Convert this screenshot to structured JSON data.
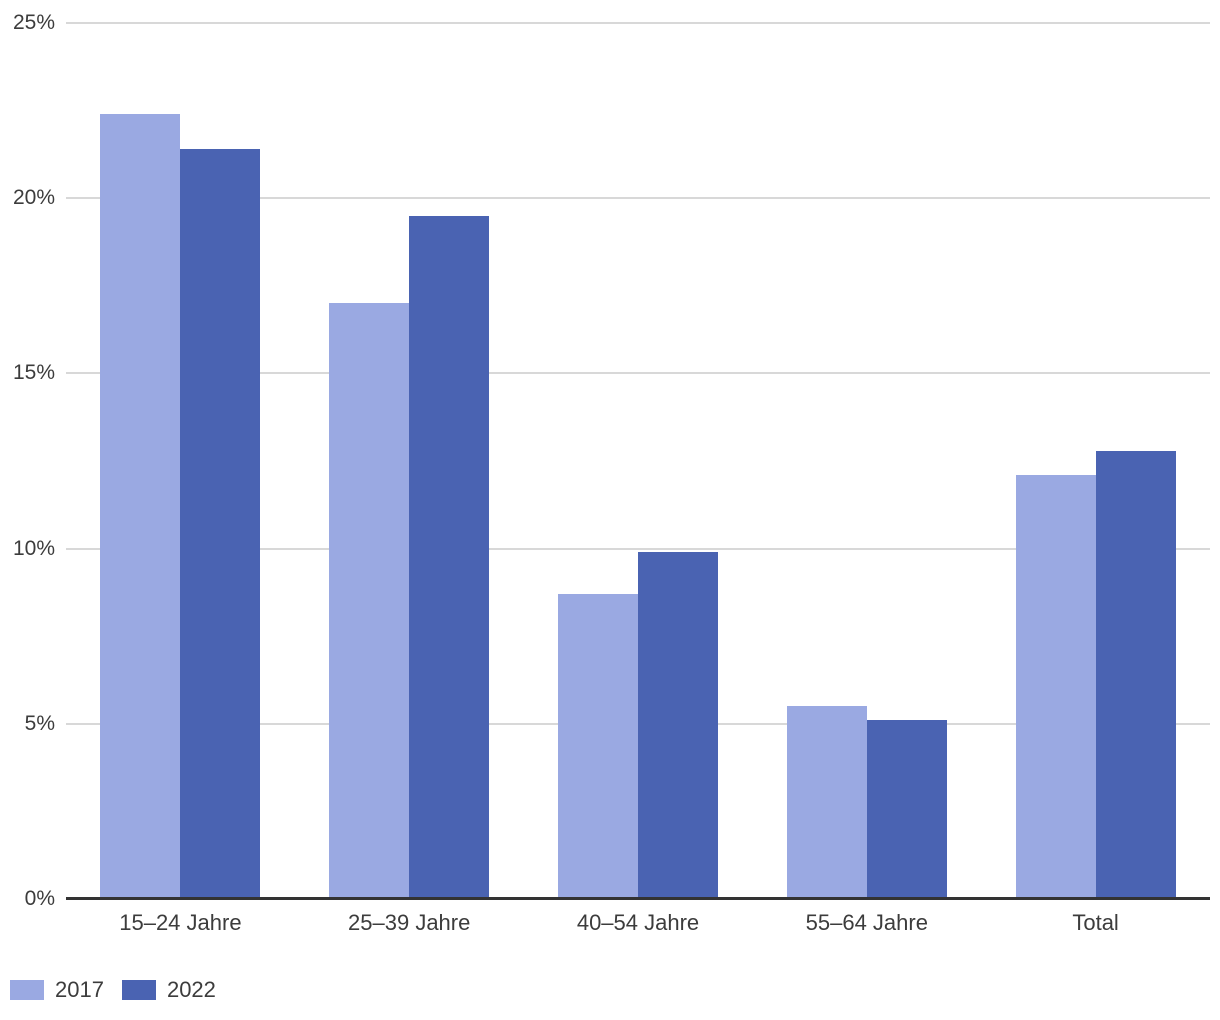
{
  "chart_data": {
    "type": "bar",
    "title": "",
    "categories": [
      "15–24 Jahre",
      "25–39 Jahre",
      "40–54 Jahre",
      "55–64 Jahre",
      "Total"
    ],
    "series": [
      {
        "name": "2017",
        "color": "#9aa9e2",
        "values": [
          22.4,
          17.0,
          8.7,
          5.5,
          12.1
        ]
      },
      {
        "name": "2022",
        "color": "#4a63b2",
        "values": [
          21.4,
          19.5,
          9.9,
          5.1,
          12.8
        ]
      }
    ],
    "ylim": [
      0,
      25
    ],
    "yticks": [
      0,
      5,
      10,
      15,
      20,
      25
    ],
    "ytick_labels": [
      "0%",
      "5%",
      "10%",
      "15%",
      "20%",
      "25%"
    ],
    "grid": true,
    "legend_position": "bottom-left"
  },
  "colors": {
    "background": "#ffffff",
    "grid_line": "#d8d8d8",
    "axis_line": "#333333",
    "text": "#3c3c3c"
  }
}
